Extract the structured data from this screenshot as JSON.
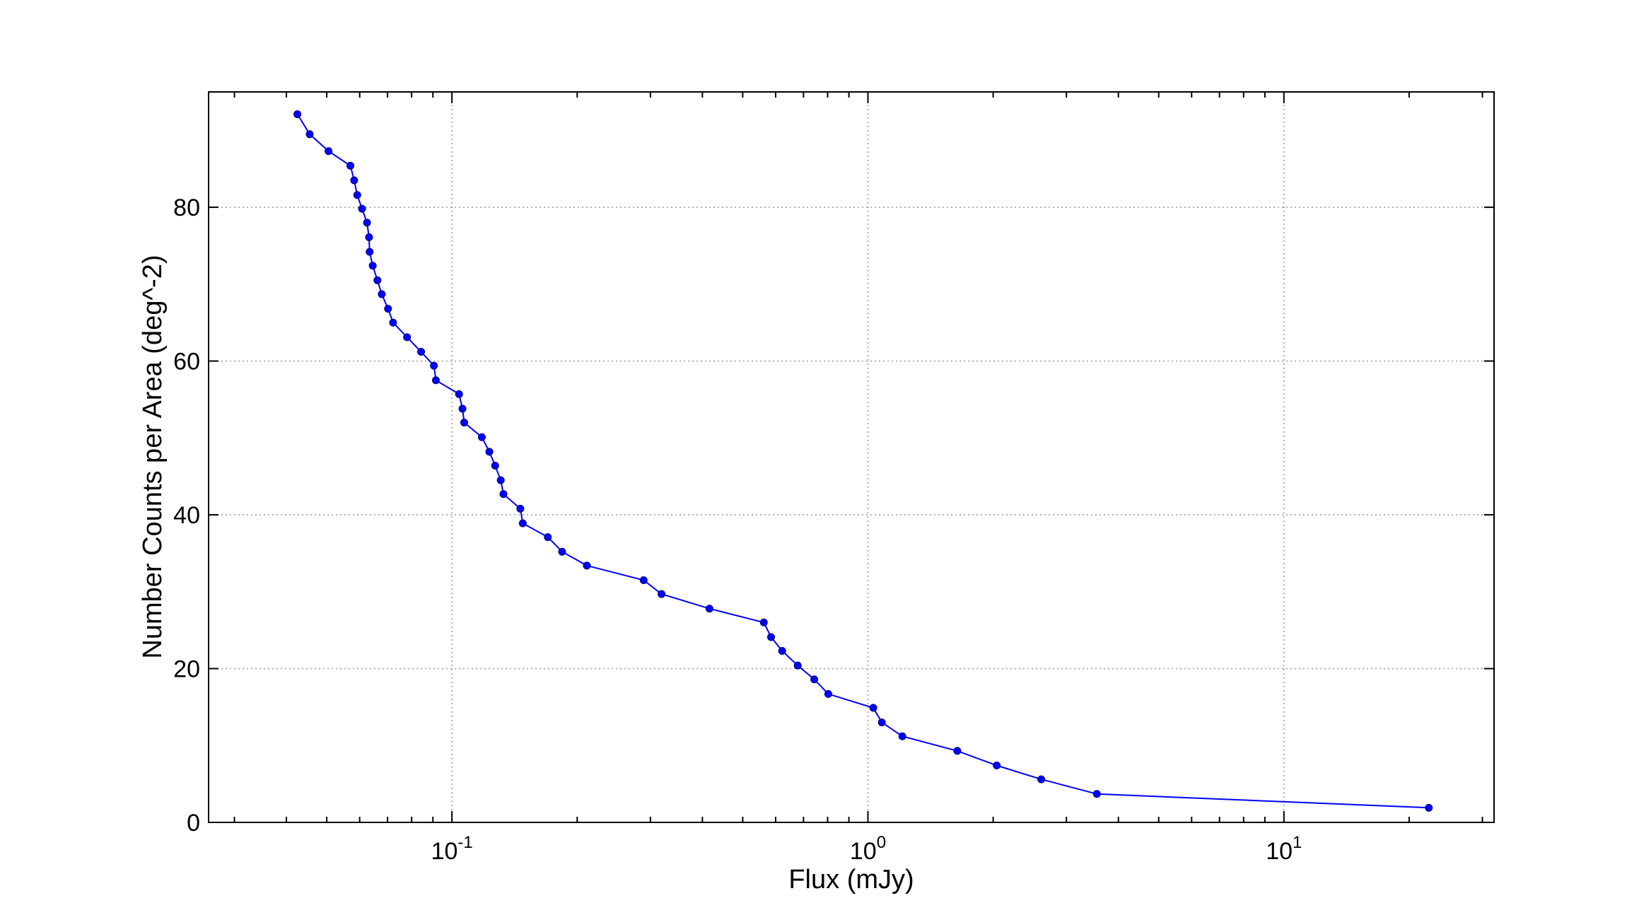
{
  "chart_data": {
    "type": "line",
    "title": "",
    "xlabel": "Flux (mJy)",
    "ylabel": "Number Counts per Area (deg^-2)",
    "xscale": "log",
    "xlim": [
      0.026,
      32
    ],
    "ylim": [
      0,
      95
    ],
    "grid": true,
    "legend": "none",
    "x_ticks": [
      {
        "value": 0.1,
        "base": "10",
        "exp": "-1"
      },
      {
        "value": 1,
        "base": "10",
        "exp": "0"
      },
      {
        "value": 10,
        "base": "10",
        "exp": "1"
      }
    ],
    "y_ticks": [
      {
        "value": 0,
        "label": "0"
      },
      {
        "value": 20,
        "label": "20"
      },
      {
        "value": 40,
        "label": "40"
      },
      {
        "value": 60,
        "label": "60"
      },
      {
        "value": 80,
        "label": "80"
      }
    ],
    "line_color": "#0000ff",
    "marker_color": "#0000ff",
    "series": [
      {
        "points": [
          [
            0.0425,
            92.1
          ],
          [
            0.0455,
            89.5
          ],
          [
            0.0505,
            87.3
          ],
          [
            0.057,
            85.4
          ],
          [
            0.0582,
            83.5
          ],
          [
            0.0592,
            81.6
          ],
          [
            0.0608,
            79.8
          ],
          [
            0.0625,
            78.0
          ],
          [
            0.0632,
            76.1
          ],
          [
            0.0634,
            74.2
          ],
          [
            0.0645,
            72.4
          ],
          [
            0.0662,
            70.5
          ],
          [
            0.0678,
            68.7
          ],
          [
            0.0702,
            66.8
          ],
          [
            0.0722,
            65.0
          ],
          [
            0.078,
            63.1
          ],
          [
            0.0843,
            61.2
          ],
          [
            0.0905,
            59.4
          ],
          [
            0.0915,
            57.5
          ],
          [
            0.104,
            55.7
          ],
          [
            0.106,
            53.8
          ],
          [
            0.107,
            52.0
          ],
          [
            0.118,
            50.1
          ],
          [
            0.123,
            48.2
          ],
          [
            0.127,
            46.4
          ],
          [
            0.131,
            44.5
          ],
          [
            0.133,
            42.7
          ],
          [
            0.146,
            40.8
          ],
          [
            0.148,
            38.9
          ],
          [
            0.17,
            37.1
          ],
          [
            0.184,
            35.2
          ],
          [
            0.211,
            33.4
          ],
          [
            0.289,
            31.5
          ],
          [
            0.319,
            29.7
          ],
          [
            0.416,
            27.8
          ],
          [
            0.562,
            26.0
          ],
          [
            0.585,
            24.1
          ],
          [
            0.622,
            22.3
          ],
          [
            0.678,
            20.4
          ],
          [
            0.743,
            18.6
          ],
          [
            0.803,
            16.7
          ],
          [
            1.03,
            14.9
          ],
          [
            1.08,
            13.0
          ],
          [
            1.21,
            11.2
          ],
          [
            1.64,
            9.3
          ],
          [
            2.04,
            7.4
          ],
          [
            2.61,
            5.6
          ],
          [
            3.55,
            3.7
          ],
          [
            22.3,
            1.9
          ]
        ]
      }
    ]
  }
}
